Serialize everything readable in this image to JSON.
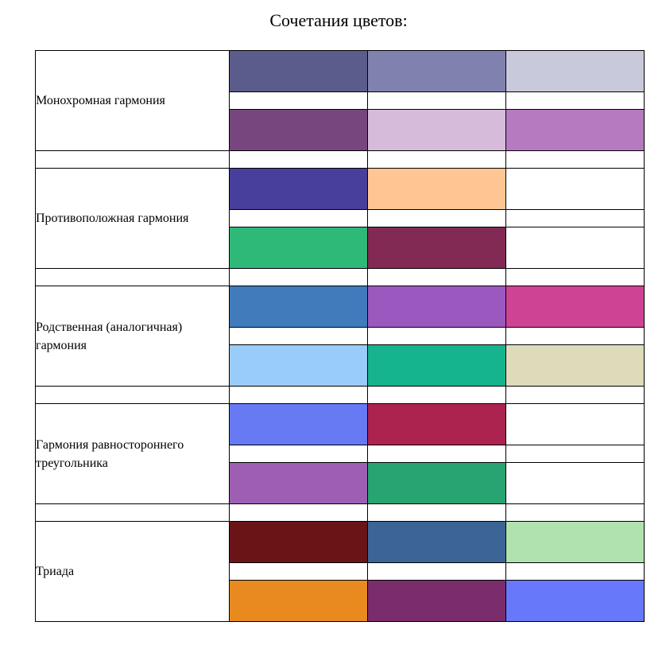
{
  "title": "Сочетания цветов:",
  "groups": [
    {
      "label": "Монохромная гармония",
      "colors": [
        [
          "#5b5b8c",
          "#8181b0",
          "#c9c9dc"
        ],
        [
          "#77467f",
          "#d7bbdb",
          "#b57abf"
        ]
      ]
    },
    {
      "label": "Противоположная гармония",
      "colors": [
        [
          "#483e9b",
          "#ffc592",
          ""
        ],
        [
          "#2eb978",
          "#832a54",
          ""
        ]
      ]
    },
    {
      "label": "Родственная (аналогичная) гармония",
      "colors": [
        [
          "#417bbc",
          "#9b58bf",
          "#ce4394"
        ],
        [
          "#99ccf8",
          "#15b48e",
          "#dedbbb"
        ]
      ]
    },
    {
      "label": "Гармония равностороннего треугольника",
      "colors": [
        [
          "#6779f3",
          "#ac234f",
          ""
        ],
        [
          "#9e5fb3",
          "#27a471",
          ""
        ]
      ]
    },
    {
      "label": "Триада",
      "colors": [
        [
          "#6a1418",
          "#3c6596",
          "#b0e2b0"
        ],
        [
          "#e88a20",
          "#7a2c6c",
          "#6779fa"
        ]
      ]
    }
  ]
}
